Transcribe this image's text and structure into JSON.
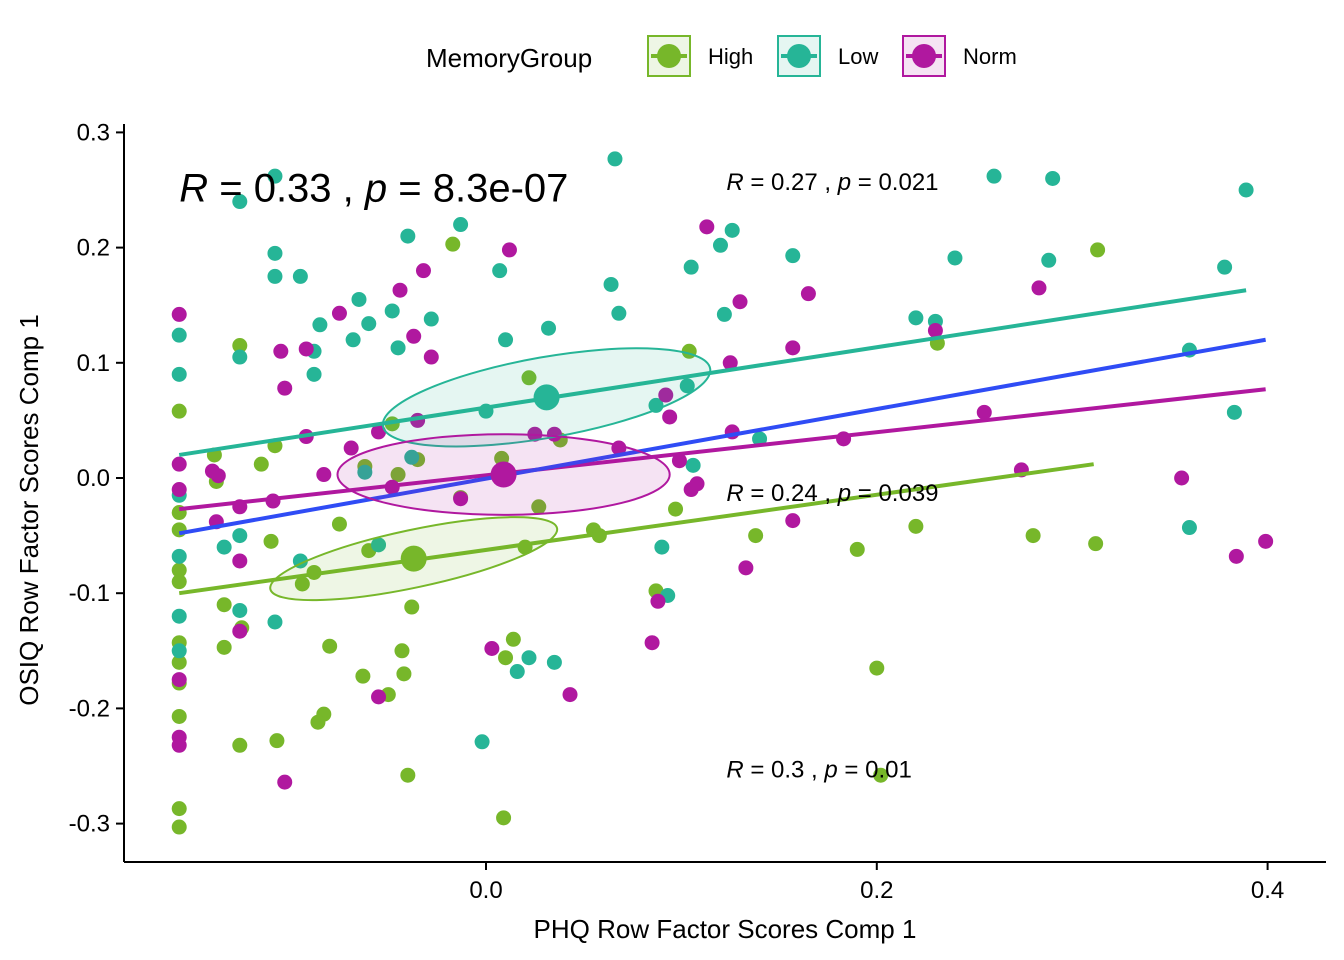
{
  "chart_data": {
    "type": "scatter",
    "xlabel": "PHQ Row Factor Scores Comp 1",
    "ylabel": "OSIQ Row Factor Scores Comp 1",
    "xlim": [
      -0.1,
      0.41
    ],
    "ylim": [
      -0.33,
      0.31
    ],
    "x_ticks": [
      0.0,
      0.2,
      0.4
    ],
    "x_tick_labels": [
      "0.0",
      "0.2",
      "0.4"
    ],
    "y_ticks": [
      -0.3,
      -0.2,
      -0.1,
      0.0,
      0.1,
      0.2,
      0.3
    ],
    "y_tick_labels": [
      "-0.3",
      "-0.2",
      "-0.1",
      "0.0",
      "0.1",
      "0.2",
      "0.3"
    ],
    "grid": false,
    "legend": {
      "title": "MemoryGroup",
      "position": "top",
      "entries": [
        "High",
        "Low",
        "Norm"
      ]
    },
    "overall_fit": {
      "color": "#2f4cf5",
      "x": [
        -0.157,
        0.399
      ],
      "y": [
        -0.048,
        0.12
      ]
    },
    "overall_stat": {
      "r_label": "R",
      "r_text": " = 0.33 , ",
      "p_label": "p",
      "p_text": " = 8.3e-07",
      "pos": [
        -0.157,
        0.24
      ]
    },
    "series": [
      {
        "name": "High",
        "color": "#77b72a",
        "stat": {
          "r_label": "R",
          "r_text": " = 0.3 , ",
          "p_label": "p",
          "p_text": " = 0.01",
          "pos": [
            0.123,
            -0.26
          ]
        },
        "fit": {
          "x": [
            -0.157,
            0.311
          ],
          "y": [
            -0.1,
            0.012
          ]
        },
        "centroid": [
          -0.037,
          -0.07
        ],
        "ellipse": {
          "rx": 0.075,
          "ry": 0.025,
          "angle": 12
        },
        "points": [
          [
            -0.157,
            0.058
          ],
          [
            -0.157,
            -0.03
          ],
          [
            -0.157,
            -0.045
          ],
          [
            -0.157,
            -0.08
          ],
          [
            -0.157,
            -0.09
          ],
          [
            -0.157,
            -0.143
          ],
          [
            -0.157,
            -0.16
          ],
          [
            -0.157,
            -0.178
          ],
          [
            -0.157,
            -0.207
          ],
          [
            -0.157,
            -0.287
          ],
          [
            -0.157,
            -0.303
          ],
          [
            -0.139,
            0.02
          ],
          [
            -0.138,
            -0.003
          ],
          [
            -0.134,
            -0.147
          ],
          [
            -0.134,
            -0.11
          ],
          [
            -0.125,
            -0.13
          ],
          [
            -0.126,
            0.115
          ],
          [
            -0.126,
            -0.232
          ],
          [
            -0.11,
            -0.055
          ],
          [
            -0.115,
            0.012
          ],
          [
            -0.107,
            -0.228
          ],
          [
            -0.108,
            0.028
          ],
          [
            -0.094,
            -0.092
          ],
          [
            -0.088,
            -0.082
          ],
          [
            -0.083,
            -0.205
          ],
          [
            -0.086,
            -0.212
          ],
          [
            -0.08,
            -0.146
          ],
          [
            -0.075,
            -0.04
          ],
          [
            -0.062,
            0.01
          ],
          [
            -0.063,
            -0.172
          ],
          [
            -0.06,
            -0.063
          ],
          [
            -0.05,
            -0.188
          ],
          [
            -0.048,
            0.047
          ],
          [
            -0.045,
            0.003
          ],
          [
            -0.043,
            -0.15
          ],
          [
            -0.042,
            -0.17
          ],
          [
            -0.04,
            -0.258
          ],
          [
            -0.038,
            -0.112
          ],
          [
            -0.035,
            0.016
          ],
          [
            -0.017,
            0.203
          ],
          [
            -0.013,
            -0.017
          ],
          [
            0.008,
            0.017
          ],
          [
            0.009,
            -0.295
          ],
          [
            0.01,
            -0.156
          ],
          [
            0.014,
            -0.14
          ],
          [
            0.02,
            -0.06
          ],
          [
            0.022,
            0.087
          ],
          [
            0.027,
            -0.025
          ],
          [
            0.038,
            0.033
          ],
          [
            0.055,
            -0.045
          ],
          [
            0.058,
            -0.05
          ],
          [
            0.087,
            -0.098
          ],
          [
            0.097,
            -0.027
          ],
          [
            0.104,
            0.11
          ],
          [
            0.138,
            -0.05
          ],
          [
            0.19,
            -0.062
          ],
          [
            0.2,
            -0.165
          ],
          [
            0.202,
            -0.258
          ],
          [
            0.22,
            -0.042
          ],
          [
            0.231,
            0.117
          ],
          [
            0.28,
            -0.05
          ],
          [
            0.312,
            -0.057
          ],
          [
            0.313,
            0.198
          ]
        ]
      },
      {
        "name": "Low",
        "color": "#26b597",
        "stat": {
          "r_label": "R",
          "r_text": " = 0.27 , ",
          "p_label": "p",
          "p_text": " = 0.021",
          "pos": [
            0.123,
            0.25
          ]
        },
        "fit": {
          "x": [
            -0.157,
            0.389
          ],
          "y": [
            0.02,
            0.163
          ]
        },
        "centroid": [
          0.031,
          0.07
        ],
        "ellipse": {
          "rx": 0.085,
          "ry": 0.035,
          "angle": 10
        },
        "points": [
          [
            -0.157,
            0.124
          ],
          [
            -0.157,
            0.09
          ],
          [
            -0.157,
            -0.015
          ],
          [
            -0.157,
            -0.068
          ],
          [
            -0.157,
            -0.12
          ],
          [
            -0.157,
            -0.15
          ],
          [
            -0.126,
            0.24
          ],
          [
            -0.126,
            0.105
          ],
          [
            -0.126,
            -0.05
          ],
          [
            -0.126,
            -0.115
          ],
          [
            -0.134,
            -0.06
          ],
          [
            -0.108,
            0.262
          ],
          [
            -0.108,
            0.195
          ],
          [
            -0.108,
            0.175
          ],
          [
            -0.108,
            -0.125
          ],
          [
            -0.095,
            0.175
          ],
          [
            -0.085,
            0.133
          ],
          [
            -0.088,
            0.11
          ],
          [
            -0.088,
            0.09
          ],
          [
            -0.095,
            -0.072
          ],
          [
            -0.065,
            0.155
          ],
          [
            -0.068,
            0.12
          ],
          [
            -0.06,
            0.134
          ],
          [
            -0.062,
            0.005
          ],
          [
            -0.055,
            -0.058
          ],
          [
            -0.048,
            0.145
          ],
          [
            -0.045,
            0.113
          ],
          [
            -0.04,
            0.21
          ],
          [
            -0.038,
            0.018
          ],
          [
            -0.028,
            0.138
          ],
          [
            -0.013,
            0.22
          ],
          [
            0.0,
            0.058
          ],
          [
            -0.002,
            -0.229
          ],
          [
            0.007,
            0.18
          ],
          [
            0.01,
            0.12
          ],
          [
            0.016,
            -0.168
          ],
          [
            0.032,
            0.13
          ],
          [
            0.022,
            -0.156
          ],
          [
            0.035,
            -0.16
          ],
          [
            0.066,
            0.277
          ],
          [
            0.064,
            0.168
          ],
          [
            0.068,
            0.143
          ],
          [
            0.087,
            0.063
          ],
          [
            0.09,
            -0.06
          ],
          [
            0.093,
            -0.102
          ],
          [
            0.105,
            0.183
          ],
          [
            0.103,
            0.08
          ],
          [
            0.12,
            0.202
          ],
          [
            0.122,
            0.142
          ],
          [
            0.126,
            0.215
          ],
          [
            0.14,
            0.034
          ],
          [
            0.157,
            0.193
          ],
          [
            0.23,
            0.136
          ],
          [
            0.22,
            0.139
          ],
          [
            0.24,
            0.191
          ],
          [
            0.26,
            0.262
          ],
          [
            0.288,
            0.189
          ],
          [
            0.29,
            0.26
          ],
          [
            0.36,
            0.111
          ],
          [
            0.36,
            -0.043
          ],
          [
            0.378,
            0.183
          ],
          [
            0.389,
            0.25
          ],
          [
            0.383,
            0.057
          ],
          [
            0.106,
            0.011
          ]
        ]
      },
      {
        "name": "Norm",
        "color": "#b0189f",
        "stat": {
          "r_label": "R",
          "r_text": " = 0.24 , ",
          "p_label": "p",
          "p_text": " = 0.039",
          "pos": [
            0.123,
            -0.02
          ]
        },
        "fit": {
          "x": [
            -0.157,
            0.399
          ],
          "y": [
            -0.027,
            0.077
          ]
        },
        "centroid": [
          0.009,
          0.003
        ],
        "ellipse": {
          "rx": 0.085,
          "ry": 0.035,
          "angle": 0
        },
        "points": [
          [
            -0.157,
            0.142
          ],
          [
            -0.157,
            0.012
          ],
          [
            -0.157,
            -0.01
          ],
          [
            -0.157,
            -0.175
          ],
          [
            -0.157,
            -0.225
          ],
          [
            -0.157,
            -0.232
          ],
          [
            -0.14,
            0.006
          ],
          [
            -0.138,
            -0.038
          ],
          [
            -0.137,
            0.002
          ],
          [
            -0.126,
            -0.025
          ],
          [
            -0.126,
            -0.072
          ],
          [
            -0.126,
            -0.133
          ],
          [
            -0.105,
            0.11
          ],
          [
            -0.103,
            0.078
          ],
          [
            -0.103,
            -0.264
          ],
          [
            -0.109,
            -0.02
          ],
          [
            -0.092,
            0.112
          ],
          [
            -0.092,
            0.036
          ],
          [
            -0.083,
            0.003
          ],
          [
            -0.075,
            0.143
          ],
          [
            -0.069,
            0.026
          ],
          [
            -0.055,
            0.04
          ],
          [
            -0.044,
            0.163
          ],
          [
            -0.037,
            0.123
          ],
          [
            -0.032,
            0.18
          ],
          [
            -0.028,
            0.105
          ],
          [
            -0.048,
            -0.008
          ],
          [
            -0.055,
            -0.19
          ],
          [
            -0.035,
            0.05
          ],
          [
            -0.013,
            -0.018
          ],
          [
            0.003,
            -0.148
          ],
          [
            0.012,
            0.198
          ],
          [
            0.025,
            0.038
          ],
          [
            0.035,
            0.038
          ],
          [
            0.043,
            -0.188
          ],
          [
            0.068,
            0.026
          ],
          [
            0.088,
            -0.107
          ],
          [
            0.092,
            0.072
          ],
          [
            0.094,
            0.053
          ],
          [
            0.099,
            0.015
          ],
          [
            0.105,
            -0.01
          ],
          [
            0.108,
            -0.005
          ],
          [
            0.113,
            0.218
          ],
          [
            0.125,
            0.1
          ],
          [
            0.126,
            0.04
          ],
          [
            0.13,
            0.153
          ],
          [
            0.133,
            -0.078
          ],
          [
            0.157,
            0.113
          ],
          [
            0.165,
            0.16
          ],
          [
            0.183,
            0.034
          ],
          [
            0.157,
            -0.037
          ],
          [
            0.23,
            0.128
          ],
          [
            0.255,
            0.057
          ],
          [
            0.274,
            0.007
          ],
          [
            0.283,
            0.165
          ],
          [
            0.356,
            0.0
          ],
          [
            0.384,
            -0.068
          ],
          [
            0.399,
            -0.055
          ],
          [
            0.085,
            -0.143
          ]
        ]
      }
    ]
  }
}
